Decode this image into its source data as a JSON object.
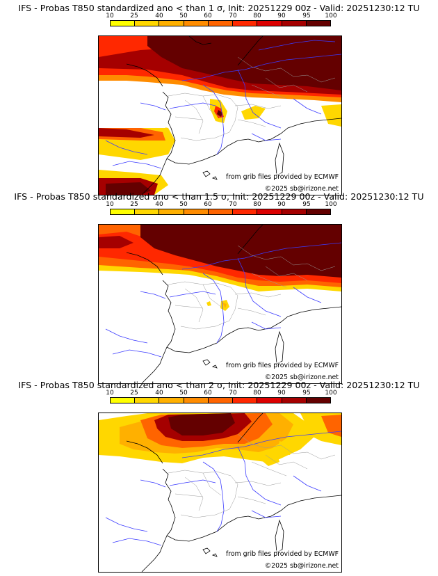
{
  "colorbar": {
    "labels": [
      "10",
      "25",
      "40",
      "50",
      "60",
      "70",
      "80",
      "90",
      "95",
      "100"
    ],
    "colors": [
      "#ffff00",
      "#ffd700",
      "#ffb000",
      "#ff8c00",
      "#ff6400",
      "#ff2800",
      "#dc0000",
      "#a50000",
      "#640000"
    ]
  },
  "credits": {
    "source": "from grib files provided by ECMWF",
    "copyright": "©2025 sb@irizone.net"
  },
  "panels": [
    {
      "title": "IFS - Probas T850  standardized ano < than 1 σ, Init: 20251229 00z - Valid: 20251230:12 TU"
    },
    {
      "title": "IFS - Probas T850  standardized ano < than 1.5 σ, Init: 20251229 00z - Valid: 20251230:12 TU"
    },
    {
      "title": "IFS - Probas T850  standardized ano < than 2 σ, Init: 20251229 00z - Valid: 20251230:12 TU"
    }
  ]
}
